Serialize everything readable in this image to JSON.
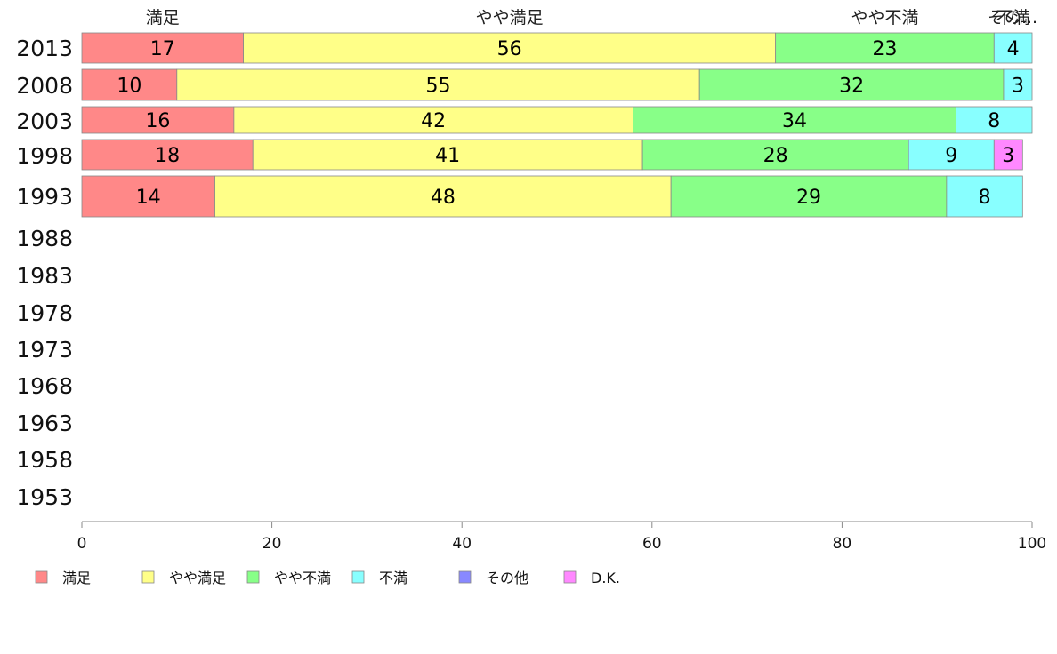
{
  "chart_data": {
    "type": "bar",
    "orientation": "horizontal",
    "stacked": true,
    "percent": true,
    "categories": [
      "2013",
      "2008",
      "2003",
      "1998",
      "1993",
      "1988",
      "1983",
      "1978",
      "1973",
      "1968",
      "1963",
      "1958",
      "1953"
    ],
    "series": [
      {
        "name": "満足",
        "color": "#ff8888",
        "values": [
          17,
          10,
          16,
          18,
          14,
          null,
          null,
          null,
          null,
          null,
          null,
          null,
          null
        ]
      },
      {
        "name": "やや満足",
        "color": "#ffff88",
        "values": [
          56,
          55,
          42,
          41,
          48,
          null,
          null,
          null,
          null,
          null,
          null,
          null,
          null
        ]
      },
      {
        "name": "やや不満",
        "color": "#88ff88",
        "values": [
          23,
          32,
          34,
          28,
          29,
          null,
          null,
          null,
          null,
          null,
          null,
          null,
          null
        ]
      },
      {
        "name": "不満",
        "color": "#88ffff",
        "values": [
          4,
          3,
          8,
          9,
          8,
          null,
          null,
          null,
          null,
          null,
          null,
          null,
          null
        ]
      },
      {
        "name": "その他",
        "color": "#8888ff",
        "values": [
          0,
          0,
          0,
          0,
          0,
          null,
          null,
          null,
          null,
          null,
          null,
          null,
          null
        ]
      },
      {
        "name": "D.K.",
        "color": "#ff88ff",
        "values": [
          0,
          0,
          0,
          3,
          0,
          null,
          null,
          null,
          null,
          null,
          null,
          null,
          null
        ]
      }
    ],
    "top_labels": [
      "満足",
      "やや満足",
      "やや不満",
      "不満",
      "その..."
    ],
    "xlim": [
      0,
      100
    ],
    "xticks": [
      0,
      20,
      40,
      60,
      80,
      100
    ],
    "legend_position": "bottom",
    "grid": false
  }
}
